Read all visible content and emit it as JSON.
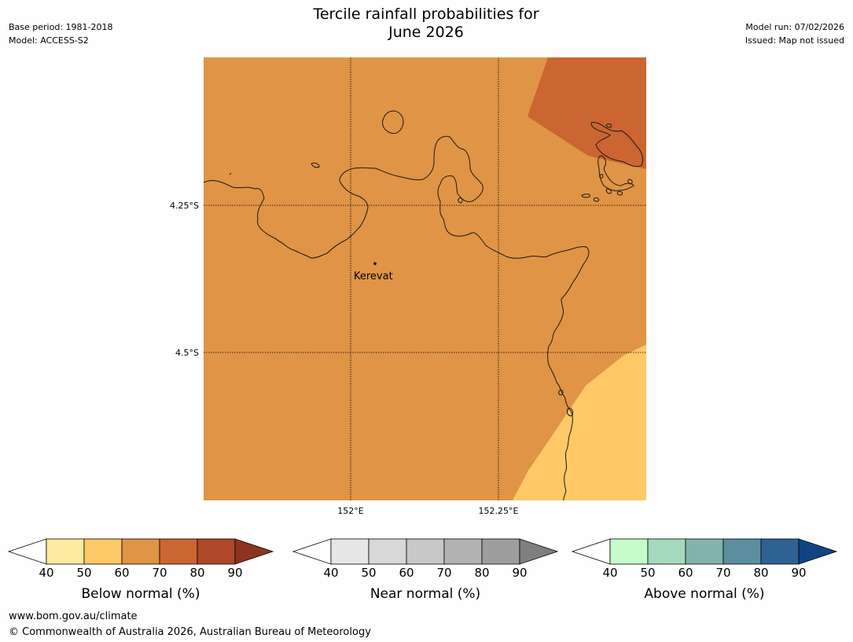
{
  "header": {
    "title_line1": "Tercile rainfall probabilities for",
    "title_line2": "June 2026",
    "base_period": "Base period: 1981-2018",
    "model": "Model: ACCESS-S2",
    "model_run": "Model run: 07/02/2026",
    "issued": "Issued: Map not issued"
  },
  "map": {
    "lat_labels": [
      "4.25°S",
      "4.5°S"
    ],
    "lon_labels": [
      "152°E",
      "152.25°E"
    ],
    "place_label": "Kerevat",
    "region_colors": {
      "below_60_70": "#e09445",
      "below_70_80": "#cb6531",
      "below_50_60": "#fec966"
    }
  },
  "legends": [
    {
      "title": "Below normal (%)",
      "ticks": [
        "40",
        "50",
        "60",
        "70",
        "80",
        "90"
      ],
      "colors": [
        "#ffffff",
        "#ffeb9f",
        "#fec966",
        "#e09445",
        "#cb6531",
        "#ad4829",
        "#8c3420"
      ]
    },
    {
      "title": "Near normal (%)",
      "ticks": [
        "40",
        "50",
        "60",
        "70",
        "80",
        "90"
      ],
      "colors": [
        "#ffffff",
        "#e7e7e7",
        "#d8d8d8",
        "#c8c8c8",
        "#b3b3b3",
        "#9e9e9e",
        "#7f7f7f"
      ]
    },
    {
      "title": "Above normal (%)",
      "ticks": [
        "40",
        "50",
        "60",
        "70",
        "80",
        "90"
      ],
      "colors": [
        "#ffffff",
        "#c6fdcb",
        "#a4d9bc",
        "#81b3ad",
        "#5b8f9f",
        "#2f6293",
        "#124483"
      ]
    }
  ],
  "footer": {
    "url": "www.bom.gov.au/climate",
    "copyright": "© Commonwealth of Australia 2026, Australian Bureau of Meteorology"
  }
}
